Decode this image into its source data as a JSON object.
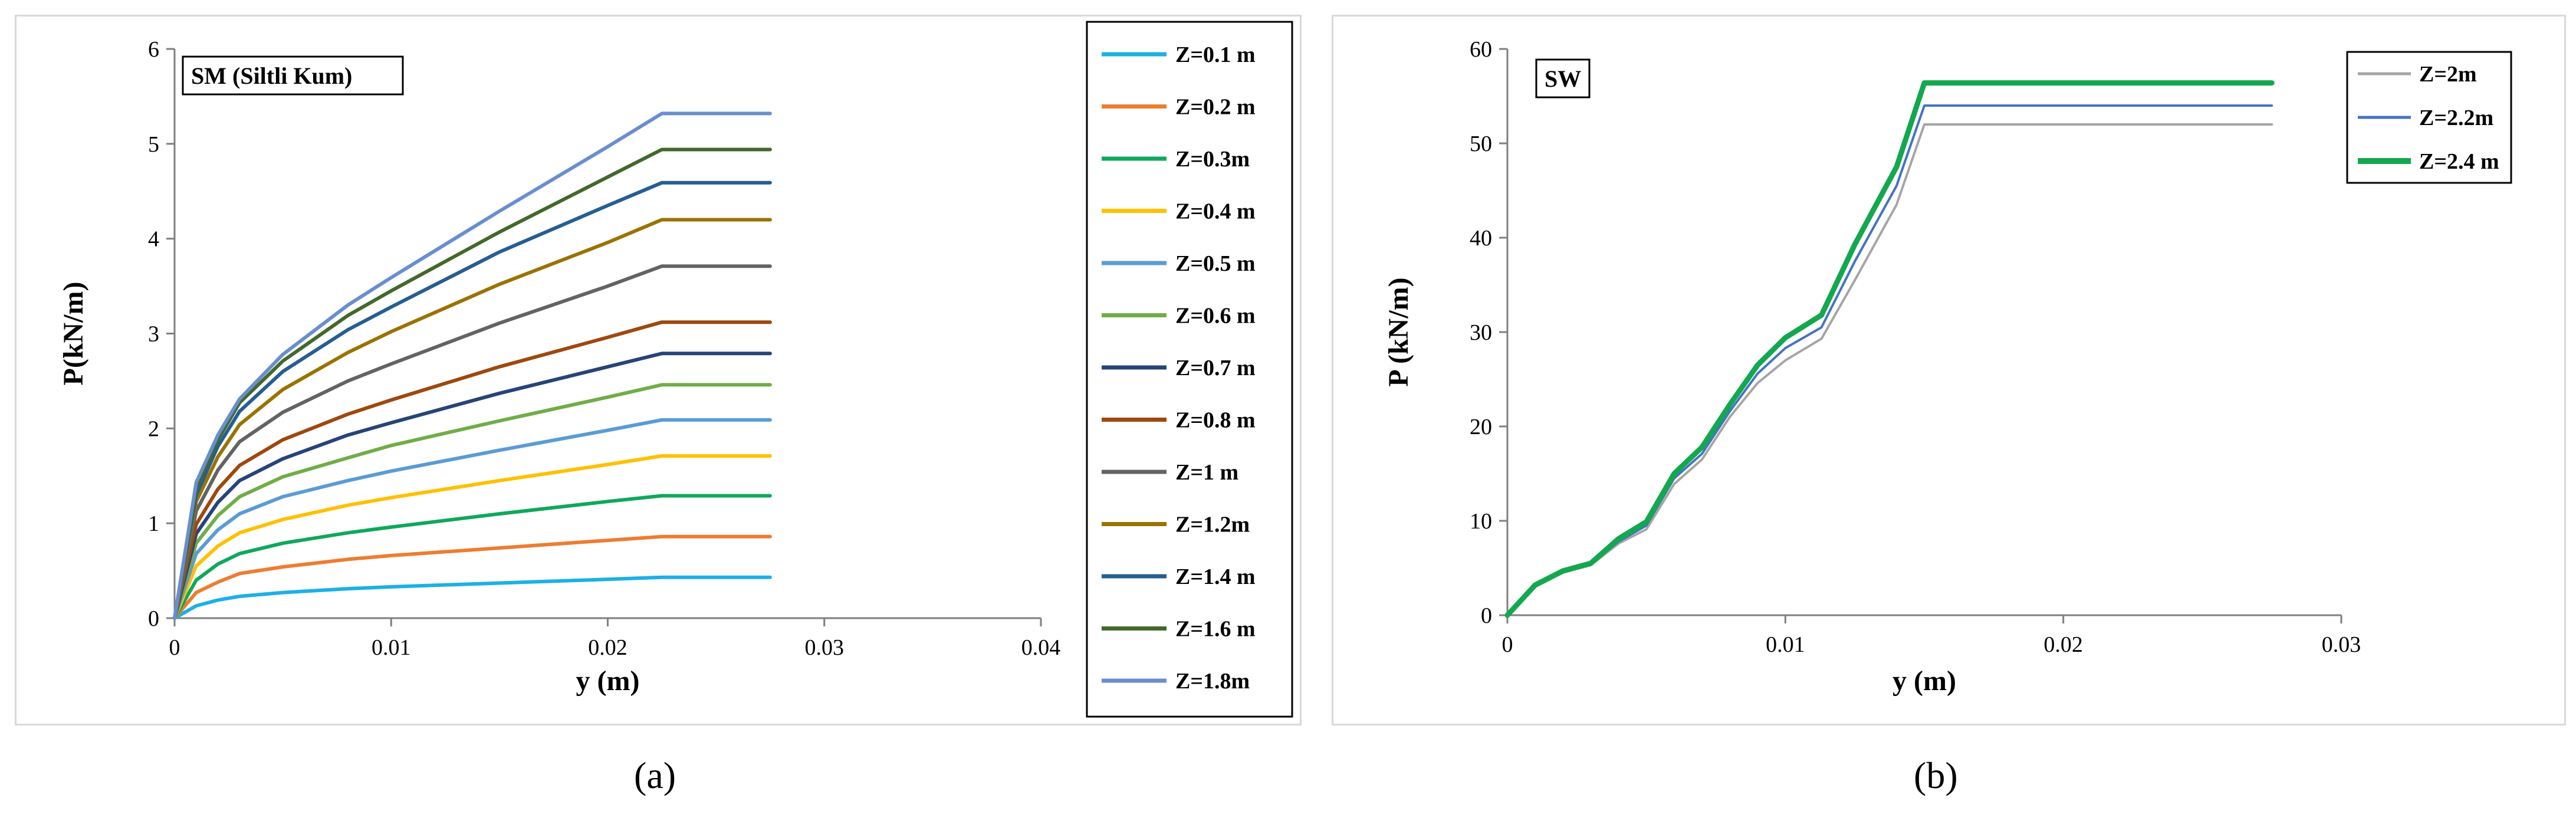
{
  "figure": {
    "label_a": "(a)",
    "label_b": "(b)"
  },
  "chart_data": [
    {
      "type": "line",
      "title": "SM (Siltli Kum)",
      "xlabel": "y (m)",
      "ylabel": "P(kN/m)",
      "xlim": [
        0,
        0.04
      ],
      "ylim": [
        0,
        6
      ],
      "xticks": [
        0,
        0.01,
        0.02,
        0.03,
        0.04
      ],
      "xtick_labels": [
        "0",
        "0.01",
        "0.02",
        "0.03",
        "0.04"
      ],
      "yticks": [
        0,
        1,
        2,
        3,
        4,
        5,
        6
      ],
      "ytick_labels": [
        "0",
        "1",
        "2",
        "3",
        "4",
        "5",
        "6"
      ],
      "grid": false,
      "legend_position": "right",
      "x": [
        0,
        0.001,
        0.002,
        0.003,
        0.005,
        0.008,
        0.01,
        0.015,
        0.02,
        0.0225,
        0.0275
      ],
      "series": [
        {
          "name": "Z=0.1 m",
          "color": "#1cb0e6",
          "values": [
            0,
            0.13,
            0.19,
            0.23,
            0.27,
            0.31,
            0.33,
            0.37,
            0.41,
            0.43,
            0.43
          ]
        },
        {
          "name": "Z=0.2 m",
          "color": "#ed7d31",
          "values": [
            0,
            0.27,
            0.38,
            0.47,
            0.54,
            0.62,
            0.66,
            0.74,
            0.82,
            0.86,
            0.86
          ]
        },
        {
          "name": "Z=0.3m",
          "color": "#0fa85c",
          "values": [
            0,
            0.4,
            0.57,
            0.68,
            0.79,
            0.9,
            0.96,
            1.1,
            1.23,
            1.29,
            1.29
          ]
        },
        {
          "name": "Z=0.4 m",
          "color": "#ffc000",
          "values": [
            0,
            0.55,
            0.76,
            0.9,
            1.04,
            1.19,
            1.27,
            1.45,
            1.62,
            1.71,
            1.71
          ]
        },
        {
          "name": "Z=0.5 m",
          "color": "#5b9bd5",
          "values": [
            0,
            0.68,
            0.93,
            1.1,
            1.28,
            1.45,
            1.55,
            1.77,
            1.98,
            2.09,
            2.09
          ]
        },
        {
          "name": "Z=0.6 m",
          "color": "#70ad47",
          "values": [
            0,
            0.79,
            1.08,
            1.28,
            1.49,
            1.69,
            1.82,
            2.08,
            2.33,
            2.46,
            2.46
          ]
        },
        {
          "name": "Z=0.7 m",
          "color": "#264478",
          "values": [
            0,
            0.89,
            1.22,
            1.45,
            1.68,
            1.93,
            2.06,
            2.37,
            2.65,
            2.79,
            2.79
          ]
        },
        {
          "name": "Z=0.8 m",
          "color": "#9e480e",
          "values": [
            0,
            0.99,
            1.36,
            1.61,
            1.88,
            2.15,
            2.3,
            2.65,
            2.96,
            3.12,
            3.12
          ]
        },
        {
          "name": "Z=1 m",
          "color": "#636363",
          "values": [
            0,
            1.13,
            1.56,
            1.86,
            2.17,
            2.5,
            2.68,
            3.11,
            3.5,
            3.71,
            3.71
          ]
        },
        {
          "name": "Z=1.2m",
          "color": "#997300",
          "values": [
            0,
            1.23,
            1.7,
            2.04,
            2.41,
            2.8,
            3.02,
            3.52,
            3.96,
            4.2,
            4.2
          ]
        },
        {
          "name": "Z=1.4 m",
          "color": "#255e91",
          "values": [
            0,
            1.3,
            1.81,
            2.18,
            2.6,
            3.04,
            3.28,
            3.86,
            4.35,
            4.59,
            4.59
          ]
        },
        {
          "name": "Z=1.6 m",
          "color": "#43682b",
          "values": [
            0,
            1.37,
            1.88,
            2.27,
            2.71,
            3.19,
            3.45,
            4.07,
            4.65,
            4.94,
            4.94
          ]
        },
        {
          "name": "Z=1.8m",
          "color": "#698ed0",
          "values": [
            0,
            1.43,
            1.93,
            2.31,
            2.78,
            3.3,
            3.59,
            4.29,
            4.97,
            5.32,
            5.32
          ]
        }
      ]
    },
    {
      "type": "line",
      "title": "SW",
      "xlabel": "y (m)",
      "ylabel": "P (kN/m)",
      "xlim": [
        0,
        0.03
      ],
      "ylim": [
        0,
        60
      ],
      "xticks": [
        0,
        0.01,
        0.02,
        0.03
      ],
      "xtick_labels": [
        "0",
        "0.01",
        "0.02",
        "0.03"
      ],
      "yticks": [
        0,
        10,
        20,
        30,
        40,
        50,
        60
      ],
      "ytick_labels": [
        "0",
        "10",
        "20",
        "30",
        "40",
        "50",
        "60"
      ],
      "grid": false,
      "legend_position": "top-right",
      "x": [
        0,
        0.001,
        0.002,
        0.003,
        0.004,
        0.005,
        0.006,
        0.007,
        0.008,
        0.009,
        0.01,
        0.0113,
        0.0125,
        0.014,
        0.015,
        0.0275
      ],
      "series": [
        {
          "name": "Z=2m",
          "color": "#a5a5a5",
          "values": [
            0,
            3,
            4.5,
            5.3,
            7.6,
            9.1,
            13.9,
            16.5,
            21,
            24.6,
            27,
            29.3,
            35.5,
            43.5,
            52,
            52
          ]
        },
        {
          "name": "Z=2.2m",
          "color": "#4472c4",
          "values": [
            0,
            3.1,
            4.6,
            5.4,
            7.8,
            9.5,
            14.5,
            17.1,
            21.6,
            25.6,
            28.3,
            30.5,
            37.5,
            45.5,
            54,
            54
          ]
        },
        {
          "name": "Z=2.4 m",
          "color": "#13a84f",
          "values": [
            0,
            3.2,
            4.7,
            5.5,
            8.1,
            9.9,
            15,
            17.8,
            22.3,
            26.5,
            29.4,
            31.8,
            39.3,
            47.5,
            56.4,
            56.4
          ]
        }
      ]
    }
  ]
}
